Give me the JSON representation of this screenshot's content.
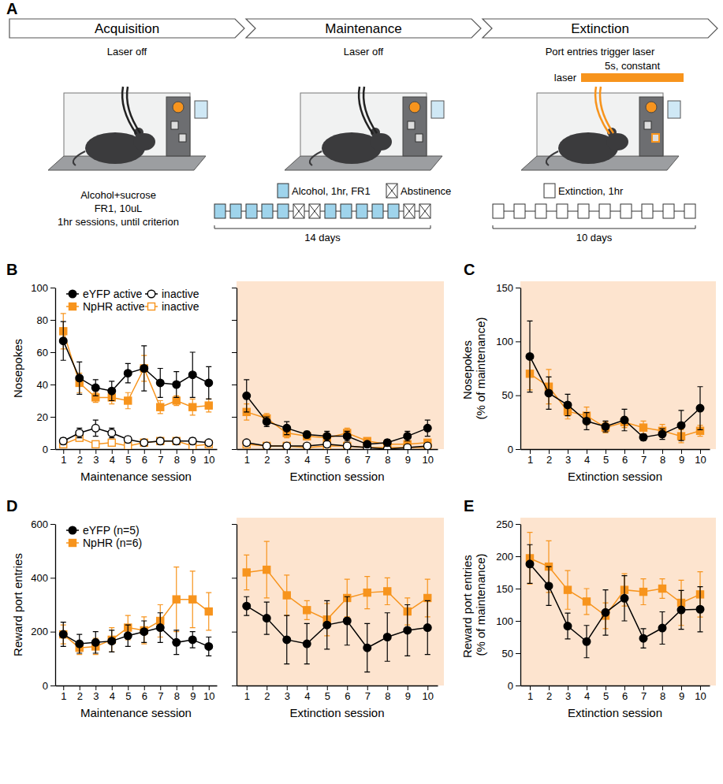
{
  "diagram": {
    "panel_label": "A",
    "stages": [
      {
        "name": "Acquisition",
        "laser": "Laser off"
      },
      {
        "name": "Maintenance",
        "laser": "Laser off"
      },
      {
        "name": "Extinction",
        "laser": "Port entries trigger laser",
        "laser_timing": "5s, constant",
        "laser_label": "laser"
      }
    ],
    "acquisition_text": [
      "Alcohol+sucrose",
      "FR1, 10uL",
      "1hr sessions, until criterion"
    ],
    "maintenance_legend": [
      "Alcohol, 1hr, FR1",
      "Abstinence"
    ],
    "maintenance_span": "14 days",
    "extinction_legend": "Extinction, 1hr",
    "extinction_span": "10 days"
  },
  "chart_data": [
    {
      "type": "line",
      "panel_label": "B",
      "xlabel": "Maintenance session",
      "ylabel": "Nosepokes",
      "x": [
        1,
        2,
        3,
        4,
        5,
        6,
        7,
        8,
        9,
        10
      ],
      "xlim": [
        0.5,
        10.5
      ],
      "xticks": [
        1,
        2,
        3,
        4,
        5,
        6,
        7,
        8,
        9,
        10
      ],
      "ylim": [
        0,
        100
      ],
      "yticks": [
        0,
        20,
        40,
        60,
        80,
        100
      ],
      "legend": "upper left",
      "series": [
        {
          "name": "eYFP active",
          "color": "#000000",
          "marker": "circle",
          "values": [
            67,
            44,
            38,
            36,
            47,
            50,
            41,
            40,
            46,
            41
          ],
          "errors": [
            12,
            10,
            5,
            6,
            6,
            14,
            9,
            8,
            14,
            10
          ]
        },
        {
          "name": "inactive",
          "color": "#000000",
          "marker": "circle-open",
          "values": [
            5,
            10,
            13,
            10,
            6,
            4,
            5,
            5,
            5,
            4
          ],
          "errors": [
            2,
            3,
            5,
            3,
            2,
            1,
            2,
            2,
            2,
            1
          ]
        },
        {
          "name": "NpHR active",
          "color": "#f7941d",
          "marker": "square",
          "values": [
            73,
            41,
            32,
            32,
            30,
            50,
            26,
            30,
            26,
            27
          ],
          "errors": [
            11,
            6,
            3,
            4,
            5,
            8,
            4,
            3,
            5,
            4
          ]
        },
        {
          "name": "inactive",
          "color": "#f7941d",
          "marker": "square-open",
          "values": [
            3,
            7,
            3,
            4,
            2,
            4,
            5,
            5,
            2,
            3
          ],
          "errors": [
            1,
            2,
            1,
            1,
            1,
            1,
            2,
            1,
            1,
            1
          ]
        }
      ]
    },
    {
      "type": "line",
      "xlabel": "Extinction session",
      "tick_labels": "x",
      "x": [
        1,
        2,
        3,
        4,
        5,
        6,
        7,
        8,
        9,
        10
      ],
      "xlim": [
        0.5,
        10.5
      ],
      "xticks": [
        1,
        2,
        3,
        4,
        5,
        6,
        7,
        8,
        9,
        10
      ],
      "ylim": [
        0,
        100
      ],
      "yticks": [
        0,
        20,
        40,
        60,
        80,
        100
      ],
      "series": [
        {
          "color": "#000000",
          "marker": "circle",
          "values": [
            33,
            17,
            13,
            9,
            8,
            8,
            3,
            4,
            8,
            13
          ],
          "errors": [
            10,
            3,
            4,
            2,
            3,
            3,
            1,
            2,
            3,
            5
          ]
        },
        {
          "color": "#000000",
          "marker": "circle-open",
          "values": [
            4,
            2,
            2,
            2,
            3,
            2,
            1,
            0,
            1,
            2
          ],
          "errors": [
            1,
            1,
            1,
            1,
            1,
            1,
            1,
            0,
            1,
            1
          ]
        },
        {
          "color": "#f7941d",
          "marker": "square",
          "values": [
            23,
            19,
            10,
            8,
            7,
            10,
            5,
            3,
            3,
            4
          ],
          "errors": [
            5,
            3,
            3,
            2,
            2,
            3,
            2,
            1,
            1,
            2
          ]
        },
        {
          "color": "#f7941d",
          "marker": "square-open",
          "values": [
            3,
            2,
            2,
            1,
            2,
            2,
            1,
            1,
            1,
            1
          ],
          "errors": [
            1,
            1,
            1,
            1,
            1,
            1,
            1,
            0,
            1,
            1
          ]
        }
      ]
    },
    {
      "type": "line",
      "panel_label": "C",
      "xlabel": "Extinction session",
      "ylabel": "Nosepokes (% of maintenance)",
      "x": [
        1,
        2,
        3,
        4,
        5,
        6,
        7,
        8,
        9,
        10
      ],
      "xlim": [
        0.5,
        10.5
      ],
      "xticks": [
        1,
        2,
        3,
        4,
        5,
        6,
        7,
        8,
        9,
        10
      ],
      "ylim": [
        0,
        150
      ],
      "yticks": [
        0,
        50,
        100,
        150
      ],
      "series": [
        {
          "color": "#000000",
          "marker": "circle",
          "values": [
            86,
            52,
            41,
            26,
            21,
            27,
            11,
            14,
            22,
            38
          ],
          "errors": [
            33,
            15,
            10,
            8,
            5,
            10,
            3,
            5,
            14,
            20
          ]
        },
        {
          "color": "#f7941d",
          "marker": "square",
          "values": [
            70,
            58,
            35,
            31,
            20,
            25,
            20,
            17,
            12,
            17
          ],
          "errors": [
            15,
            16,
            7,
            8,
            5,
            5,
            6,
            6,
            6,
            5
          ]
        }
      ]
    },
    {
      "type": "line",
      "panel_label": "D",
      "xlabel": "Maintenance session",
      "ylabel": "Reward port entries",
      "x": [
        1,
        2,
        3,
        4,
        5,
        6,
        7,
        8,
        9,
        10
      ],
      "xlim": [
        0.5,
        10.5
      ],
      "xticks": [
        1,
        2,
        3,
        4,
        5,
        6,
        7,
        8,
        9,
        10
      ],
      "ylim": [
        0,
        600
      ],
      "yticks": [
        0,
        200,
        400,
        600
      ],
      "legend": "upper left",
      "series": [
        {
          "name": "eYFP (n=5)",
          "color": "#000000",
          "marker": "circle",
          "values": [
            190,
            155,
            160,
            165,
            185,
            200,
            215,
            160,
            170,
            145
          ],
          "errors": [
            45,
            35,
            40,
            40,
            40,
            40,
            55,
            45,
            30,
            35
          ]
        },
        {
          "name": "NpHR (n=6)",
          "color": "#f7941d",
          "marker": "square",
          "values": [
            190,
            140,
            145,
            170,
            215,
            205,
            240,
            320,
            320,
            275
          ],
          "errors": [
            35,
            25,
            30,
            45,
            45,
            50,
            60,
            120,
            105,
            70
          ]
        }
      ]
    },
    {
      "type": "line",
      "xlabel": "Extinction session",
      "tick_labels": "x",
      "x": [
        1,
        2,
        3,
        4,
        5,
        6,
        7,
        8,
        9,
        10
      ],
      "xlim": [
        0.5,
        10.5
      ],
      "xticks": [
        1,
        2,
        3,
        4,
        5,
        6,
        7,
        8,
        9,
        10
      ],
      "ylim": [
        0,
        600
      ],
      "yticks": [
        0,
        200,
        400,
        600
      ],
      "series": [
        {
          "color": "#000000",
          "marker": "circle",
          "values": [
            295,
            250,
            170,
            155,
            225,
            240,
            140,
            180,
            205,
            215
          ],
          "errors": [
            35,
            60,
            90,
            75,
            90,
            90,
            90,
            90,
            95,
            100
          ]
        },
        {
          "color": "#f7941d",
          "marker": "square",
          "values": [
            420,
            430,
            335,
            280,
            245,
            325,
            345,
            350,
            275,
            325
          ],
          "errors": [
            65,
            105,
            75,
            35,
            60,
            70,
            60,
            50,
            50,
            70
          ]
        }
      ]
    },
    {
      "type": "line",
      "panel_label": "E",
      "xlabel": "Extinction session",
      "ylabel": "Reward port entries (% of maintenance)",
      "x": [
        1,
        2,
        3,
        4,
        5,
        6,
        7,
        8,
        9,
        10
      ],
      "xlim": [
        0.5,
        10.5
      ],
      "xticks": [
        1,
        2,
        3,
        4,
        5,
        6,
        7,
        8,
        9,
        10
      ],
      "ylim": [
        0,
        250
      ],
      "yticks": [
        0,
        50,
        100,
        150,
        200,
        250
      ],
      "series": [
        {
          "color": "#000000",
          "marker": "circle",
          "values": [
            188,
            154,
            92,
            68,
            113,
            135,
            73,
            89,
            117,
            118
          ],
          "errors": [
            30,
            30,
            20,
            25,
            35,
            35,
            15,
            25,
            30,
            35
          ]
        },
        {
          "color": "#f7941d",
          "marker": "square",
          "values": [
            197,
            184,
            148,
            130,
            108,
            148,
            145,
            150,
            128,
            141
          ],
          "errors": [
            40,
            40,
            30,
            20,
            20,
            25,
            20,
            15,
            35,
            35
          ]
        }
      ]
    }
  ]
}
